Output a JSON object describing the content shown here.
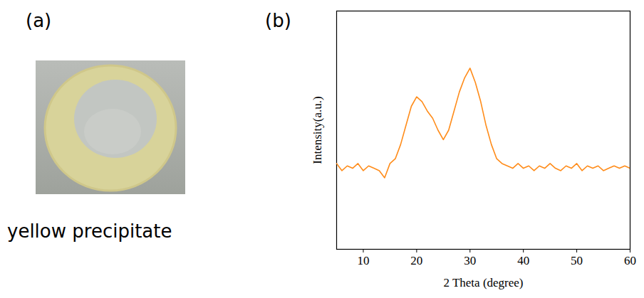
{
  "panel_a": {
    "label": "(a)",
    "caption": "yellow precipitate"
  },
  "chart_data": {
    "type": "line",
    "panel_label": "(b)",
    "x_label": "2 Theta (degree)",
    "y_label": "Intensity(a.u.)",
    "x": [
      5,
      6,
      7,
      8,
      9,
      10,
      11,
      12,
      13,
      14,
      15,
      16,
      17,
      18,
      19,
      20,
      21,
      22,
      23,
      24,
      25,
      26,
      27,
      28,
      29,
      30,
      31,
      32,
      33,
      34,
      35,
      36,
      37,
      38,
      39,
      40,
      41,
      42,
      43,
      44,
      45,
      46,
      47,
      48,
      49,
      50,
      51,
      52,
      53,
      54,
      55,
      56,
      57,
      58,
      59,
      60
    ],
    "values": [
      36,
      33,
      35,
      34,
      36,
      33,
      35,
      34,
      33,
      30,
      36,
      38,
      44,
      52,
      60,
      64,
      62,
      58,
      55,
      50,
      46,
      50,
      58,
      66,
      72,
      76,
      70,
      62,
      52,
      44,
      38,
      36,
      35,
      34,
      36,
      34,
      35,
      33,
      35,
      34,
      36,
      34,
      33,
      35,
      34,
      36,
      33,
      35,
      34,
      35,
      33,
      34,
      35,
      34,
      35,
      34
    ],
    "color": "#ff8c1a",
    "xlim": [
      5,
      60
    ],
    "xticks": [
      10,
      20,
      30,
      40,
      50,
      60
    ],
    "ylim": [
      0,
      100
    ],
    "grid": false,
    "tick_labels": "x"
  }
}
